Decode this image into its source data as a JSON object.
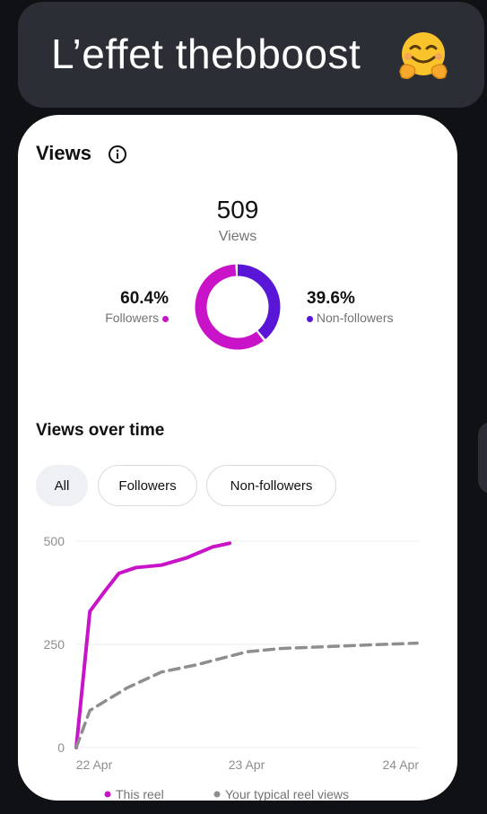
{
  "bubble": {
    "text": "L’effet thebboost",
    "emoji": "hugging-face-emoji"
  },
  "views": {
    "title": "Views",
    "total": "509",
    "total_label": "Views",
    "followers_pct": "60.4%",
    "followers_label": "Followers",
    "nonfollowers_pct": "39.6%",
    "nonfollowers_label": "Non-followers",
    "followers_fraction": 0.604,
    "colors": {
      "followers": "#c913c9",
      "nonfollowers": "#5a16d6"
    }
  },
  "views_over_time": {
    "title": "Views over time",
    "filters": [
      "All",
      "Followers",
      "Non-followers"
    ],
    "active_filter": "All"
  },
  "chart_data": {
    "type": "line",
    "yticks": [
      0,
      250,
      500
    ],
    "xticks": [
      "22 Apr",
      "23 Apr",
      "24 Apr"
    ],
    "ylim": [
      0,
      500
    ],
    "grid": true,
    "legend_position": "bottom",
    "series": [
      {
        "name": "This reel",
        "color": "#c913c9",
        "style": "solid",
        "points": [
          [
            0,
            0
          ],
          [
            0.08,
            330
          ],
          [
            0.17,
            380
          ],
          [
            0.25,
            422
          ],
          [
            0.35,
            436
          ],
          [
            0.5,
            442
          ],
          [
            0.65,
            460
          ],
          [
            0.8,
            486
          ],
          [
            0.9,
            495
          ]
        ]
      },
      {
        "name": "Your typical reel views",
        "color": "#8e8e8e",
        "style": "dashed",
        "points": [
          [
            0,
            0
          ],
          [
            0.08,
            90
          ],
          [
            0.3,
            145
          ],
          [
            0.5,
            183
          ],
          [
            0.7,
            200
          ],
          [
            1.0,
            232
          ],
          [
            1.2,
            240
          ],
          [
            1.5,
            245
          ],
          [
            1.8,
            250
          ],
          [
            2.0,
            253
          ]
        ]
      }
    ]
  }
}
